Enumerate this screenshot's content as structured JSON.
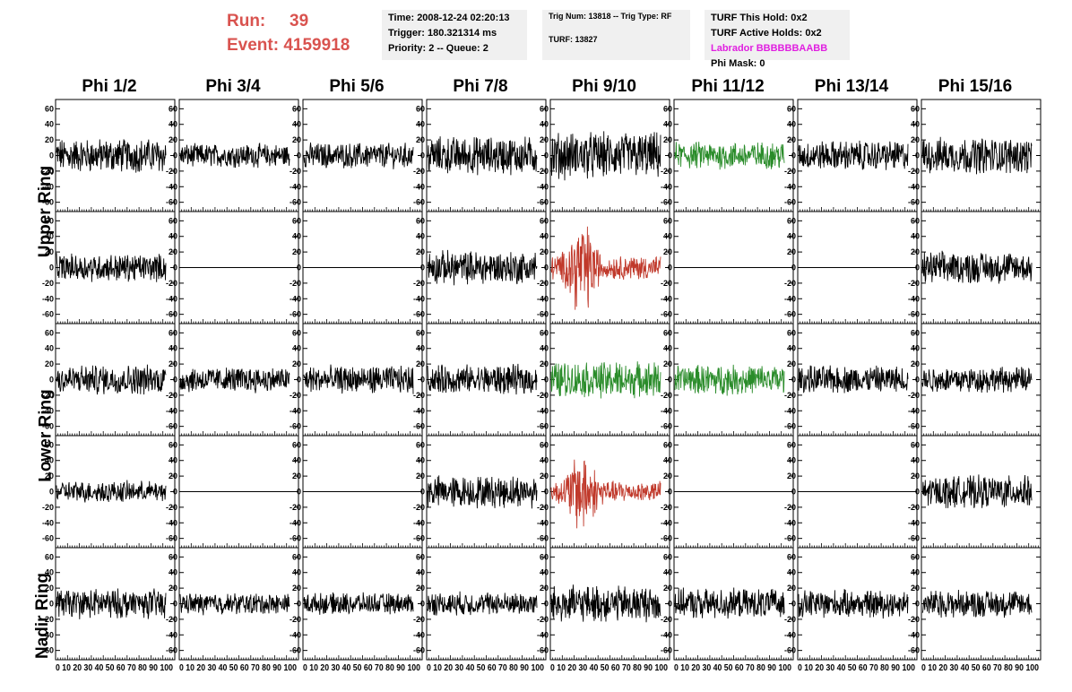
{
  "header": {
    "run_label": "Run:",
    "run_value": "39",
    "event_label": "Event:",
    "event_value": "4159918",
    "time": "Time: 2008-12-24 02:20:13",
    "trigger": "Trigger: 180.321314 ms",
    "priority": "Priority: 2 -- Queue: 2",
    "trig_num": "Trig Num: 13818 -- Trig Type: RF",
    "turf": "TURF: 13827",
    "turf_hold": "TURF This Hold: 0x2",
    "turf_active": "TURF Active Holds: 0x2",
    "labrador": "Labrador BBBBBBAABB",
    "phi_mask": "Phi Mask: 0"
  },
  "colors": {
    "normal": "#000000",
    "green": "#2a8c2a",
    "red": "#c0392b",
    "header_red": "#d9534f",
    "magenta": "#e020e0",
    "panel": "#f0f0f0"
  },
  "chart_data": {
    "type": "line",
    "columns": [
      "Phi 1/2",
      "Phi 3/4",
      "Phi 5/6",
      "Phi 7/8",
      "Phi 9/10",
      "Phi 11/12",
      "Phi 13/14",
      "Phi 15/16"
    ],
    "rings": [
      "Upper Ring",
      "Lower Ring",
      "Nadir Ring"
    ],
    "ylim": [
      -65,
      65
    ],
    "yticks": [
      -60,
      -40,
      -20,
      0,
      20,
      40,
      60
    ],
    "xlim": [
      0,
      100
    ],
    "xticks": [
      0,
      10,
      20,
      30,
      40,
      50,
      60,
      70,
      80,
      90,
      100
    ],
    "x_tick_label": "0 10 20 30 40 50 60 70 80 90 100",
    "rows": [
      {
        "ring": "Upper Ring",
        "amplitude": [
          16,
          11,
          12,
          18,
          22,
          13,
          14,
          17
        ],
        "color": [
          "n",
          "n",
          "n",
          "n",
          "n",
          "g",
          "n",
          "n"
        ]
      },
      {
        "ring": "Upper Ring",
        "amplitude": [
          13,
          0,
          0,
          16,
          25,
          0,
          0,
          15
        ],
        "color": [
          "n",
          "n",
          "n",
          "n",
          "r",
          "n",
          "n",
          "n"
        ]
      },
      {
        "ring": "Lower Ring",
        "amplitude": [
          14,
          12,
          13,
          14,
          17,
          14,
          13,
          12
        ],
        "color": [
          "n",
          "n",
          "n",
          "n",
          "g",
          "g",
          "n",
          "n"
        ]
      },
      {
        "ring": "Lower Ring",
        "amplitude": [
          10,
          0,
          0,
          15,
          22,
          0,
          0,
          15
        ],
        "color": [
          "n",
          "n",
          "n",
          "n",
          "r",
          "n",
          "n",
          "n"
        ]
      },
      {
        "ring": "Nadir Ring",
        "amplitude": [
          14,
          10,
          10,
          11,
          17,
          14,
          13,
          13
        ],
        "color": [
          "n",
          "n",
          "n",
          "n",
          "n",
          "n",
          "n",
          "n"
        ]
      }
    ]
  }
}
